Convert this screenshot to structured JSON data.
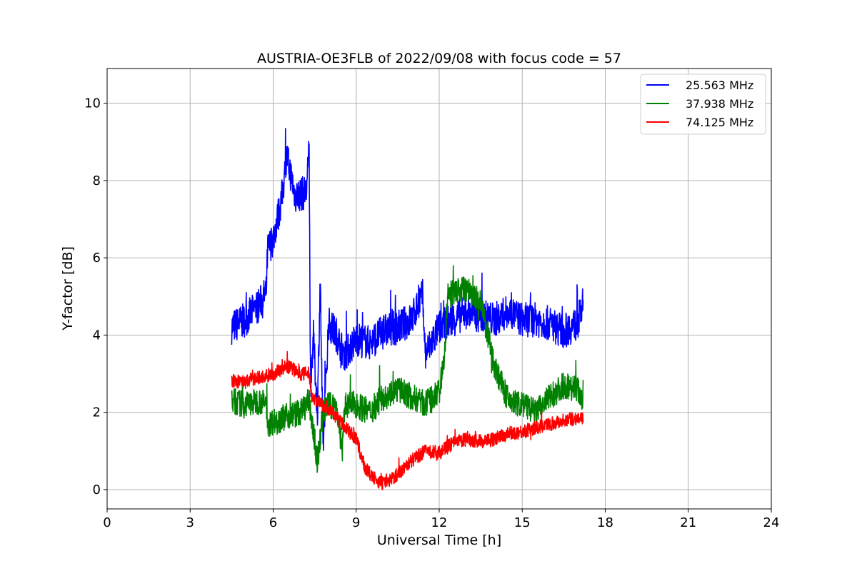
{
  "chart_data": {
    "type": "line",
    "title": "AUSTRIA-OE3FLB of 2022/09/08 with focus code = 57",
    "xlabel": "Universal Time [h]",
    "ylabel": "Y-factor [dB]",
    "xlim": [
      0,
      24
    ],
    "ylim": [
      -0.5,
      10.9
    ],
    "xticks": [
      0,
      3,
      6,
      9,
      12,
      15,
      18,
      21,
      24
    ],
    "yticks": [
      0,
      2,
      4,
      6,
      8,
      10
    ],
    "grid": true,
    "legend_position": "top-right",
    "series": [
      {
        "name": "25.563 MHz",
        "color": "#0000ff",
        "noise": 0.45,
        "x": [
          4.5,
          5.0,
          5.5,
          5.75,
          5.8,
          6.0,
          6.3,
          6.5,
          6.8,
          7.2,
          7.3,
          7.35,
          7.45,
          7.6,
          7.7,
          7.8,
          8.0,
          8.3,
          8.5,
          8.6,
          9.0,
          9.5,
          10.0,
          10.5,
          11.0,
          11.3,
          11.4,
          11.5,
          12.0,
          12.5,
          13.0,
          13.5,
          14.0,
          14.5,
          15.0,
          15.5,
          16.0,
          16.5,
          17.0,
          17.2
        ],
        "y": [
          4.2,
          4.4,
          4.8,
          5.1,
          6.2,
          6.5,
          7.5,
          8.6,
          7.6,
          7.7,
          8.8,
          2.5,
          4.0,
          2.0,
          5.5,
          1.0,
          4.3,
          4.0,
          3.6,
          3.5,
          3.9,
          3.8,
          4.1,
          4.2,
          4.4,
          4.9,
          5.0,
          3.5,
          4.2,
          4.4,
          4.6,
          4.5,
          4.4,
          4.6,
          4.4,
          4.4,
          4.3,
          4.1,
          4.3,
          4.8
        ]
      },
      {
        "name": "37.938 MHz",
        "color": "#008000",
        "noise": 0.35,
        "x": [
          4.5,
          5.0,
          5.5,
          5.75,
          5.8,
          6.5,
          7.0,
          7.3,
          7.5,
          7.6,
          7.8,
          8.0,
          8.3,
          8.5,
          8.6,
          9.0,
          9.5,
          10.0,
          10.5,
          11.0,
          11.3,
          11.5,
          12.0,
          12.2,
          12.3,
          12.5,
          13.0,
          13.5,
          14.0,
          14.5,
          15.0,
          15.5,
          16.0,
          16.5,
          17.0,
          17.2
        ],
        "y": [
          2.3,
          2.2,
          2.3,
          2.2,
          1.7,
          1.9,
          2.0,
          2.3,
          1.2,
          0.7,
          2.0,
          2.2,
          2.1,
          1.0,
          2.2,
          2.2,
          2.0,
          2.4,
          2.6,
          2.4,
          2.3,
          2.2,
          2.5,
          3.5,
          5.0,
          5.1,
          5.2,
          4.8,
          3.2,
          2.3,
          2.2,
          2.0,
          2.4,
          2.7,
          2.6,
          2.3
        ]
      },
      {
        "name": "74.125 MHz",
        "color": "#ff0000",
        "noise": 0.18,
        "x": [
          4.5,
          5.0,
          5.5,
          6.0,
          6.5,
          7.0,
          7.3,
          7.4,
          8.0,
          8.5,
          9.0,
          9.3,
          9.6,
          10.0,
          10.5,
          11.0,
          11.5,
          12.0,
          12.5,
          13.0,
          13.5,
          14.0,
          14.5,
          15.0,
          15.5,
          16.0,
          16.5,
          17.0,
          17.2
        ],
        "y": [
          2.8,
          2.8,
          2.9,
          3.0,
          3.2,
          3.0,
          3.0,
          2.4,
          2.1,
          1.7,
          1.3,
          0.6,
          0.3,
          0.15,
          0.4,
          0.75,
          1.0,
          0.95,
          1.2,
          1.3,
          1.25,
          1.3,
          1.45,
          1.5,
          1.6,
          1.7,
          1.8,
          1.85,
          1.8
        ]
      }
    ]
  }
}
